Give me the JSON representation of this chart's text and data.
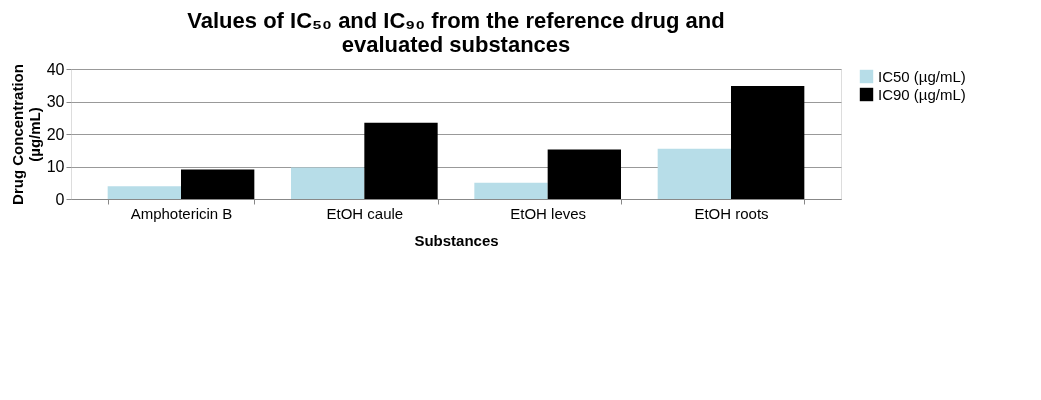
{
  "chart_data": {
    "type": "bar",
    "title": [
      "Values of IC₅₀ and IC₉₀ from the reference drug and",
      "evaluated substances"
    ],
    "xlabel": "Substances",
    "ylabel": [
      "Drug Concentration",
      "(µg/mL)"
    ],
    "categories": [
      "Amphotericin B",
      "EtOH caule",
      "EtOH leves",
      "EtOH roots"
    ],
    "series": [
      {
        "name": "IC50 (µg/mL)",
        "color": "#b7dde8",
        "values": [
          3.9,
          9.7,
          5.0,
          15.5
        ]
      },
      {
        "name": "IC90 (µg/mL)",
        "color": "#000000",
        "values": [
          9.1,
          23.5,
          15.2,
          34.8
        ]
      }
    ],
    "ylim": [
      0,
      40
    ],
    "yticks": [
      0,
      10,
      20,
      30,
      40
    ],
    "grid": "y",
    "legend": "right"
  }
}
